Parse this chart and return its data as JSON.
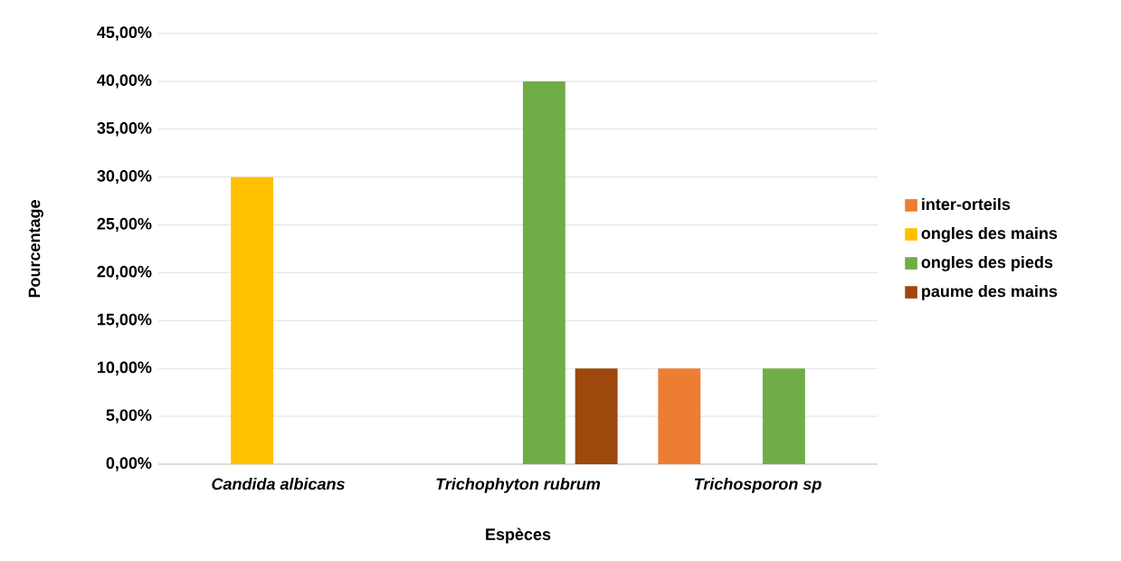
{
  "chart_data": {
    "type": "bar",
    "xlabel": "Espèces",
    "ylabel": "Pourcentage",
    "categories": [
      "Candida albicans",
      "Trichophyton rubrum",
      "Trichosporon sp"
    ],
    "series": [
      {
        "name": "inter-orteils",
        "color": "#ed7d31",
        "values": [
          null,
          null,
          10
        ]
      },
      {
        "name": "ongles des mains",
        "color": "#ffc000",
        "values": [
          30,
          null,
          null
        ]
      },
      {
        "name": "ongles des pieds",
        "color": "#70ad47",
        "values": [
          null,
          40,
          10
        ]
      },
      {
        "name": "paume des mains",
        "color": "#9e480e",
        "values": [
          null,
          10,
          null
        ]
      }
    ],
    "ylim": [
      0,
      45
    ],
    "yticks": [
      {
        "value": 0,
        "label": "0,00%"
      },
      {
        "value": 5,
        "label": "5,00%"
      },
      {
        "value": 10,
        "label": "10,00%"
      },
      {
        "value": 15,
        "label": "15,00%"
      },
      {
        "value": 20,
        "label": "20,00%"
      },
      {
        "value": 25,
        "label": "25,00%"
      },
      {
        "value": 30,
        "label": "30,00%"
      },
      {
        "value": 35,
        "label": "35,00%"
      },
      {
        "value": 40,
        "label": "40,00%"
      },
      {
        "value": 45,
        "label": "45,00%"
      }
    ],
    "grid": "y",
    "legend": "right"
  }
}
